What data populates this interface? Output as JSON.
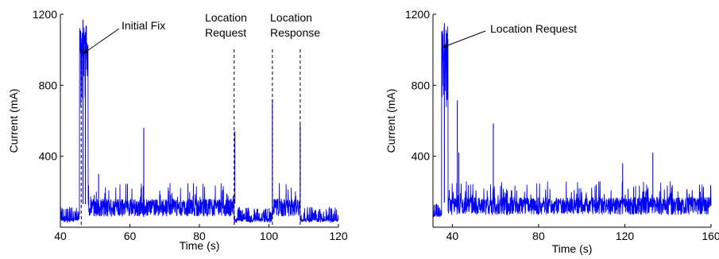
{
  "colors": {
    "signal": "#0000ff",
    "axis": "#000000",
    "annotation": "#000000"
  },
  "chart_data": [
    {
      "type": "line",
      "xlabel": "Time (s)",
      "ylabel": "Current (mA)",
      "xlim": [
        40,
        120
      ],
      "ylim": [
        0,
        1200
      ],
      "xticks": [
        40,
        60,
        80,
        100,
        120
      ],
      "yticks": [
        400,
        800,
        1200
      ],
      "grid": false,
      "baseline_mA": 70,
      "activity_mA": 130,
      "segments": [
        {
          "x": [
            40,
            45.5
          ],
          "level": "baseline"
        },
        {
          "x": [
            45.5,
            48
          ],
          "level": "peak"
        },
        {
          "x": [
            48,
            90
          ],
          "level": "activity"
        },
        {
          "x": [
            90,
            101
          ],
          "level": "baseline"
        },
        {
          "x": [
            101,
            109
          ],
          "level": "activity"
        },
        {
          "x": [
            109,
            120
          ],
          "level": "baseline"
        }
      ],
      "spikes": [
        {
          "x": 46.5,
          "y": 1170
        },
        {
          "x": 47.2,
          "y": 1100
        },
        {
          "x": 51,
          "y": 300
        },
        {
          "x": 64,
          "y": 560
        },
        {
          "x": 90.2,
          "y": 540
        },
        {
          "x": 101,
          "y": 720
        },
        {
          "x": 109,
          "y": 580
        }
      ],
      "annotations": [
        {
          "lines": [
            "Initial Fix"
          ],
          "x": 46
        },
        {
          "lines": [
            "Location",
            "Request"
          ],
          "x": 90
        },
        {
          "lines": [
            "Location",
            "Response"
          ],
          "x": 101
        },
        {
          "lines": [],
          "x": 109
        }
      ]
    },
    {
      "type": "line",
      "xlabel": "Time (s)",
      "ylabel": "Current (mA)",
      "xlim": [
        31,
        160
      ],
      "ylim": [
        0,
        1200
      ],
      "xticks": [
        40,
        80,
        120,
        160
      ],
      "yticks": [
        400,
        800,
        1200
      ],
      "grid": false,
      "baseline_mA": 100,
      "activity_mA": 140,
      "segments": [
        {
          "x": [
            31,
            35
          ],
          "level": "baseline"
        },
        {
          "x": [
            35,
            38
          ],
          "level": "peak"
        },
        {
          "x": [
            38,
            160
          ],
          "level": "activity"
        }
      ],
      "spikes": [
        {
          "x": 36.3,
          "y": 1150
        },
        {
          "x": 42.3,
          "y": 715
        },
        {
          "x": 43,
          "y": 420
        },
        {
          "x": 59,
          "y": 585
        },
        {
          "x": 119,
          "y": 360
        },
        {
          "x": 133,
          "y": 420
        }
      ],
      "annotations": [
        {
          "lines": [
            "Location Request"
          ],
          "x": 36.5
        }
      ]
    }
  ]
}
